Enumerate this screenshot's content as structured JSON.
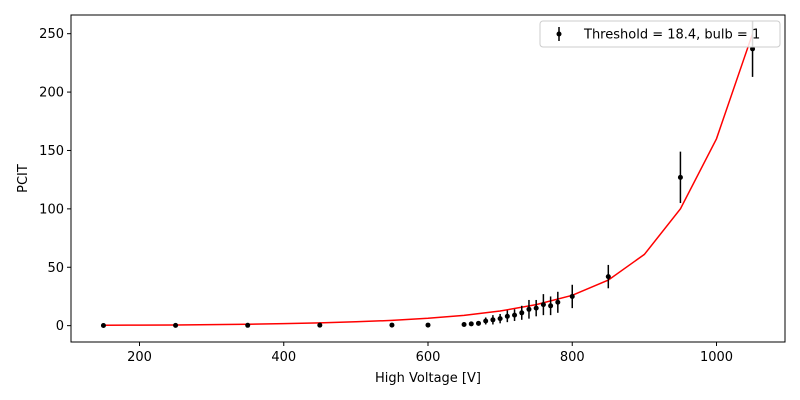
{
  "chart_data": {
    "type": "scatter",
    "xlabel": "High Voltage [V]",
    "ylabel": "PCIT",
    "xlim": [
      105,
      1095
    ],
    "ylim": [
      -14,
      266
    ],
    "xticks": [
      200,
      400,
      600,
      800,
      1000
    ],
    "yticks": [
      0,
      50,
      100,
      150,
      200,
      250
    ],
    "grid": false,
    "legend_position": "top-right",
    "series": [
      {
        "name": "Threshold = 18.4, bulb = 1",
        "kind": "errorbar",
        "color": "#000000",
        "x": [
          150,
          250,
          350,
          450,
          550,
          600,
          650,
          660,
          670,
          680,
          690,
          700,
          710,
          720,
          730,
          740,
          750,
          760,
          770,
          780,
          800,
          850,
          950,
          1050
        ],
        "y": [
          0.1,
          0.2,
          0.3,
          0.4,
          0.5,
          0.5,
          1,
          1.5,
          2,
          4,
          5,
          6,
          8,
          9,
          11,
          14,
          15,
          18,
          17,
          20,
          25,
          42,
          127,
          237
        ],
        "yerr": [
          0.5,
          0.5,
          0.5,
          0.5,
          0.5,
          0.5,
          1,
          1.5,
          2,
          3,
          4,
          4,
          5,
          5,
          6,
          8,
          7,
          9,
          8,
          9,
          10,
          10,
          22,
          24
        ]
      },
      {
        "name": "",
        "kind": "line",
        "color": "#ff0000",
        "x": [
          150,
          200,
          250,
          300,
          350,
          400,
          450,
          500,
          550,
          600,
          650,
          700,
          750,
          800,
          850,
          900,
          950,
          1000,
          1050
        ],
        "y": [
          0.3,
          0.45,
          0.6,
          0.85,
          1.2,
          1.7,
          2.4,
          3.3,
          4.5,
          6.3,
          8.8,
          12.5,
          18,
          26,
          39,
          61,
          100,
          160,
          250
        ]
      }
    ]
  }
}
